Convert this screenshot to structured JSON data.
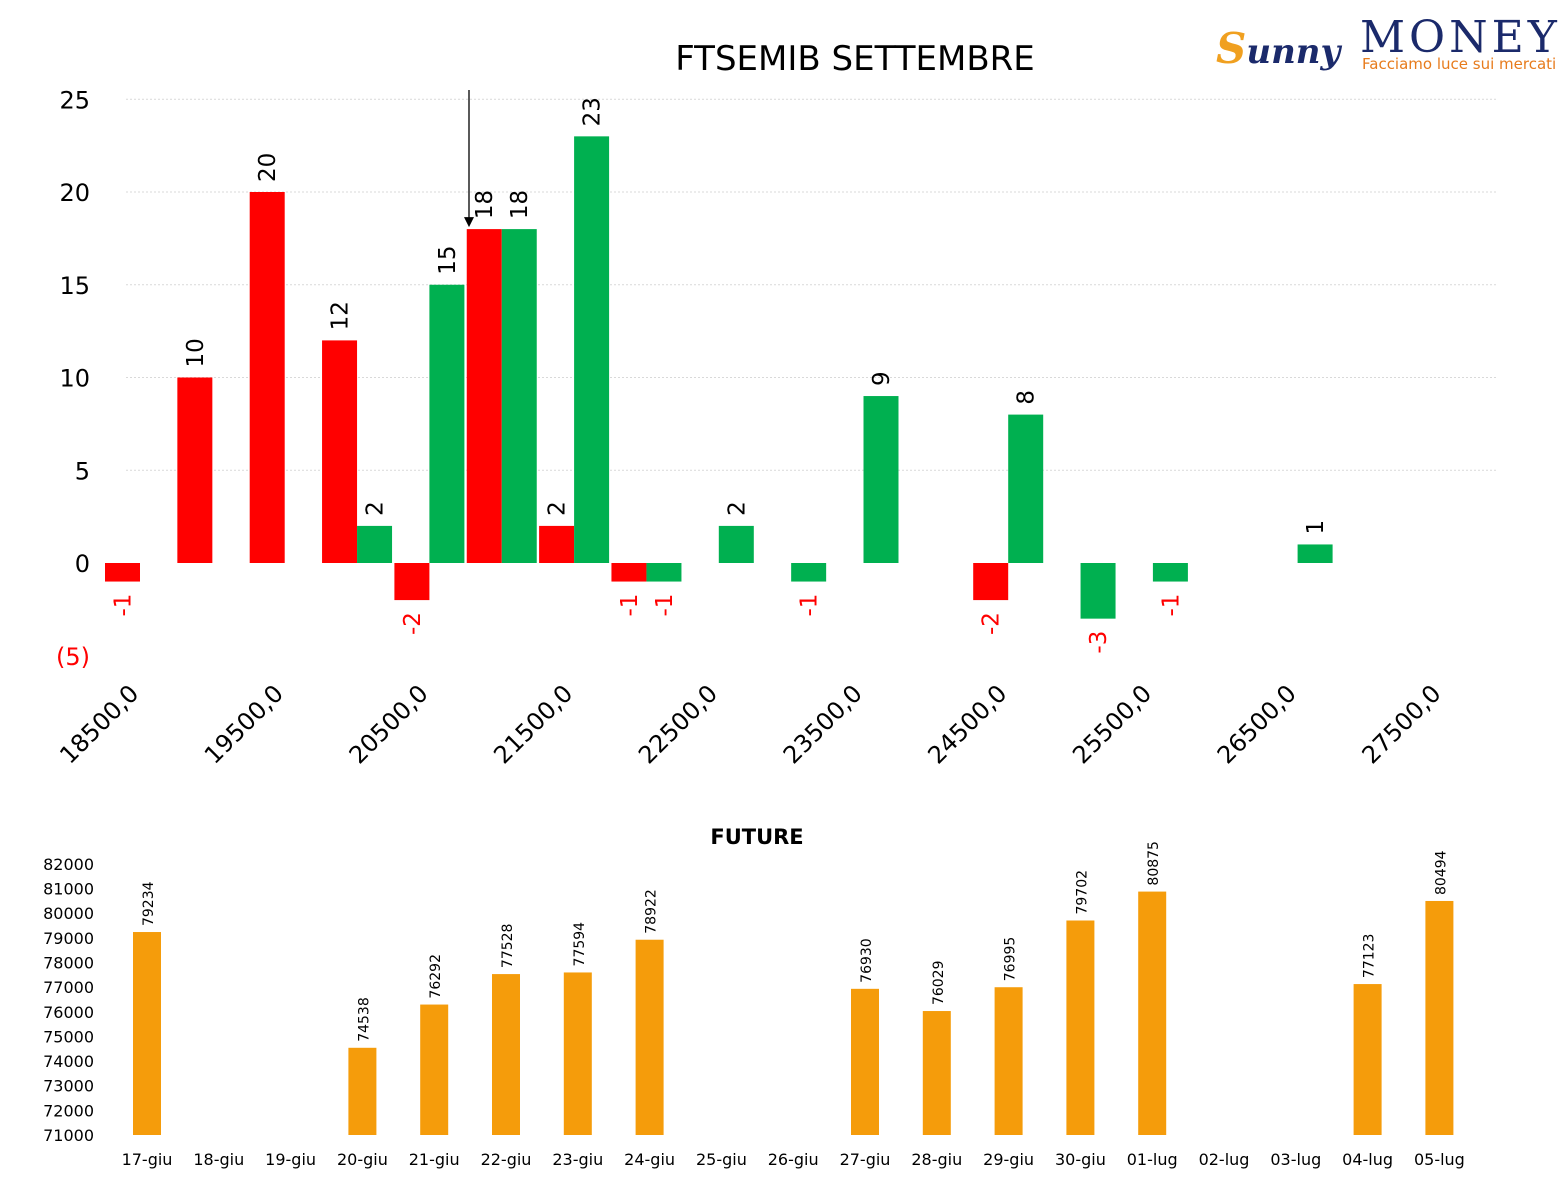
{
  "logo": {
    "script_first": "S",
    "script_rest": "unny",
    "main": "MONEY",
    "tagline": "Facciamo luce sui mercati"
  },
  "colors": {
    "red": "#ff0000",
    "green": "#00b050",
    "orange": "#f59c0b",
    "arrow": "#000000"
  },
  "chart_data": [
    {
      "type": "bar",
      "title": "FTSEMIB SETTEMBRE",
      "ylim": [
        -5,
        25
      ],
      "yticks": [
        25,
        20,
        15,
        10,
        5,
        0,
        -5
      ],
      "ytick_labels": [
        "25",
        "20",
        "15",
        "10",
        "5",
        "0",
        "(5)"
      ],
      "xlim": [
        18500,
        27500
      ],
      "xticks": [
        18500,
        19500,
        20500,
        21500,
        22500,
        23500,
        24500,
        25500,
        26500,
        27500
      ],
      "xtick_labels": [
        "18500,0",
        "19500,0",
        "20500,0",
        "21500,0",
        "22500,0",
        "23500,0",
        "24500,0",
        "25500,0",
        "26500,0",
        "27500,0"
      ],
      "grid": true,
      "series": [
        {
          "color": "red",
          "points": [
            {
              "x": 18500,
              "y": -1
            },
            {
              "x": 19000,
              "y": 10
            },
            {
              "x": 19500,
              "y": 20
            },
            {
              "x": 20000,
              "y": 12
            },
            {
              "x": 20500,
              "y": -2
            },
            {
              "x": 21000,
              "y": 18
            },
            {
              "x": 21500,
              "y": 2
            },
            {
              "x": 22000,
              "y": -1
            },
            {
              "x": 24500,
              "y": -2
            }
          ]
        },
        {
          "color": "green",
          "points": [
            {
              "x": 20000,
              "y": 2
            },
            {
              "x": 20500,
              "y": 15
            },
            {
              "x": 21000,
              "y": 18
            },
            {
              "x": 21500,
              "y": 23
            },
            {
              "x": 22000,
              "y": -1
            },
            {
              "x": 22500,
              "y": 2
            },
            {
              "x": 23000,
              "y": -1
            },
            {
              "x": 23500,
              "y": 9
            },
            {
              "x": 24500,
              "y": 8
            },
            {
              "x": 25000,
              "y": -3
            },
            {
              "x": 25500,
              "y": -1
            },
            {
              "x": 26500,
              "y": 1
            }
          ]
        }
      ],
      "annotations": [
        {
          "type": "arrow",
          "x": 20750,
          "y_from": 25.5,
          "y_to": 18
        }
      ]
    },
    {
      "type": "bar",
      "title": "FUTURE",
      "ylim": [
        71000,
        82000
      ],
      "yticks": [
        82000,
        81000,
        80000,
        79000,
        78000,
        77000,
        76000,
        75000,
        74000,
        73000,
        72000,
        71000
      ],
      "categories": [
        "17-giu",
        "18-giu",
        "19-giu",
        "20-giu",
        "21-giu",
        "22-giu",
        "23-giu",
        "24-giu",
        "25-giu",
        "26-giu",
        "27-giu",
        "28-giu",
        "29-giu",
        "30-giu",
        "01-lug",
        "02-lug",
        "03-lug",
        "04-lug",
        "05-lug"
      ],
      "values": [
        79234,
        null,
        null,
        74538,
        76292,
        77528,
        77594,
        78922,
        null,
        null,
        76930,
        76029,
        76995,
        79702,
        80875,
        null,
        null,
        77123,
        80494
      ],
      "color": "orange"
    }
  ]
}
